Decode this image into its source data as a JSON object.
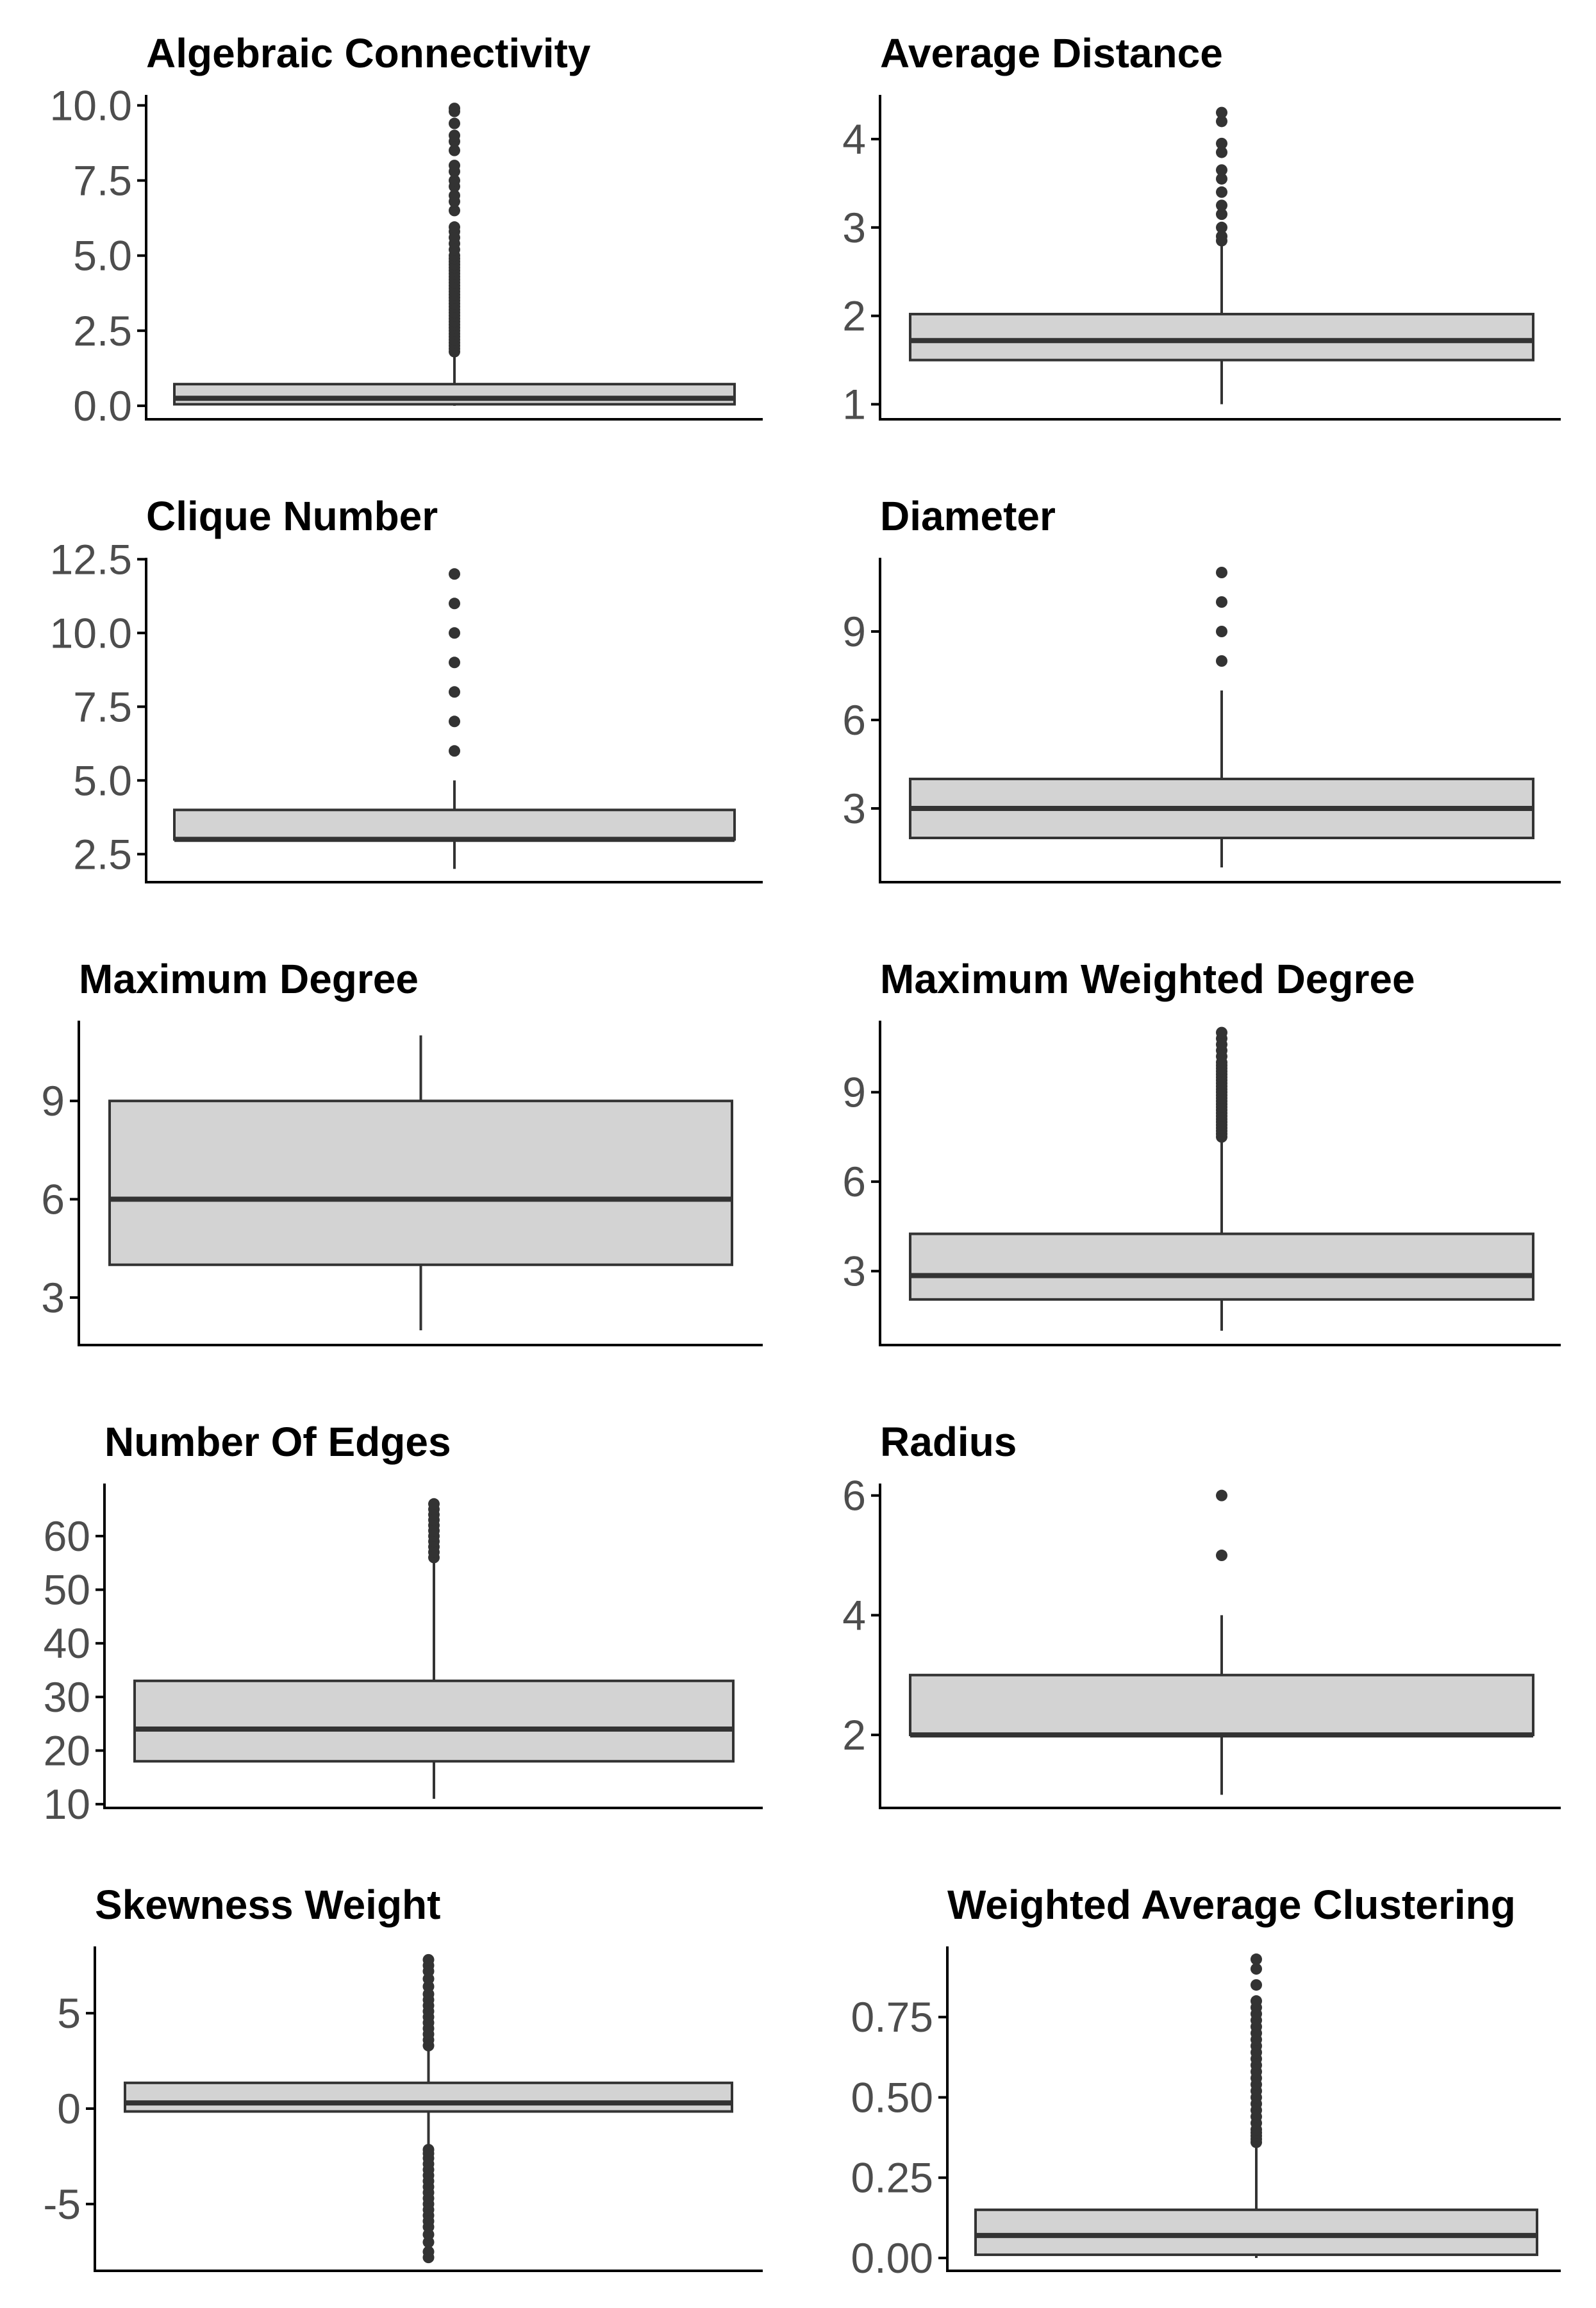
{
  "colors": {
    "box_fill": "#d3d3d3",
    "line": "#333333",
    "axis": "#000000",
    "tick_text": "#4d4d4d",
    "title_text": "#000000"
  },
  "chart_data": [
    {
      "type": "box",
      "title": "Algebraic Connectivity",
      "ylim": [
        -0.45,
        10.35
      ],
      "ticks": [
        {
          "v": 0,
          "label": "0.0"
        },
        {
          "v": 2.5,
          "label": "2.5"
        },
        {
          "v": 5,
          "label": "5.0"
        },
        {
          "v": 7.5,
          "label": "7.5"
        },
        {
          "v": 10,
          "label": "10.0"
        }
      ],
      "stats": {
        "whisker_low": 0.0,
        "q1": 0.05,
        "median": 0.25,
        "q3": 0.72,
        "whisker_high": 1.75
      },
      "outliers": [
        1.8,
        1.9,
        2.0,
        2.1,
        2.2,
        2.3,
        2.4,
        2.5,
        2.6,
        2.7,
        2.8,
        2.9,
        3.0,
        3.1,
        3.2,
        3.3,
        3.4,
        3.5,
        3.6,
        3.7,
        3.8,
        3.9,
        4.0,
        4.1,
        4.2,
        4.3,
        4.4,
        4.5,
        4.6,
        4.7,
        4.8,
        4.9,
        5.0,
        5.2,
        5.4,
        5.6,
        5.8,
        5.95,
        6.5,
        6.8,
        7.0,
        7.3,
        7.5,
        7.8,
        8.0,
        8.5,
        8.8,
        9.0,
        9.4,
        9.8,
        9.9
      ]
    },
    {
      "type": "box",
      "title": "Average Distance",
      "ylim": [
        0.83,
        4.5
      ],
      "ticks": [
        {
          "v": 1,
          "label": "1"
        },
        {
          "v": 2,
          "label": "2"
        },
        {
          "v": 3,
          "label": "3"
        },
        {
          "v": 4,
          "label": "4"
        }
      ],
      "stats": {
        "whisker_low": 1.0,
        "q1": 1.5,
        "median": 1.72,
        "q3": 2.02,
        "whisker_high": 2.8
      },
      "outliers": [
        2.85,
        2.9,
        3.0,
        3.15,
        3.25,
        3.4,
        3.55,
        3.65,
        3.85,
        3.95,
        4.2,
        4.3
      ]
    },
    {
      "type": "box",
      "title": "Clique Number",
      "ylim": [
        1.55,
        12.55
      ],
      "ticks": [
        {
          "v": 2.5,
          "label": "2.5"
        },
        {
          "v": 5,
          "label": "5.0"
        },
        {
          "v": 7.5,
          "label": "7.5"
        },
        {
          "v": 10,
          "label": "10.0"
        },
        {
          "v": 12.5,
          "label": "12.5"
        }
      ],
      "stats": {
        "whisker_low": 2,
        "q1": 3,
        "median": 3,
        "q3": 4,
        "whisker_high": 5
      },
      "outliers": [
        6,
        7,
        8,
        9,
        10,
        11,
        12
      ]
    },
    {
      "type": "box",
      "title": "Diameter",
      "ylim": [
        0.5,
        11.5
      ],
      "ticks": [
        {
          "v": 3,
          "label": "3"
        },
        {
          "v": 6,
          "label": "6"
        },
        {
          "v": 9,
          "label": "9"
        }
      ],
      "stats": {
        "whisker_low": 1,
        "q1": 2,
        "median": 3,
        "q3": 4,
        "whisker_high": 7
      },
      "outliers": [
        8,
        9,
        10,
        11
      ]
    },
    {
      "type": "box",
      "title": "Maximum Degree",
      "ylim": [
        1.55,
        11.45
      ],
      "ticks": [
        {
          "v": 3,
          "label": "3"
        },
        {
          "v": 6,
          "label": "6"
        },
        {
          "v": 9,
          "label": "9"
        }
      ],
      "stats": {
        "whisker_low": 2,
        "q1": 4,
        "median": 6,
        "q3": 9,
        "whisker_high": 11
      },
      "outliers": []
    },
    {
      "type": "box",
      "title": "Maximum Weighted Degree",
      "ylim": [
        0.52,
        11.4
      ],
      "ticks": [
        {
          "v": 3,
          "label": "3"
        },
        {
          "v": 6,
          "label": "6"
        },
        {
          "v": 9,
          "label": "9"
        }
      ],
      "stats": {
        "whisker_low": 1.0,
        "q1": 2.05,
        "median": 2.85,
        "q3": 4.25,
        "whisker_high": 7.4
      },
      "outliers": [
        7.5,
        7.6,
        7.7,
        7.8,
        7.9,
        8.0,
        8.1,
        8.2,
        8.3,
        8.4,
        8.5,
        8.6,
        8.7,
        8.8,
        8.9,
        9.0,
        9.1,
        9.2,
        9.3,
        9.4,
        9.5,
        9.6,
        9.7,
        9.8,
        9.9,
        10.0,
        10.2,
        10.4,
        10.6,
        10.8,
        11.0
      ]
    },
    {
      "type": "box",
      "title": "Number Of Edges",
      "ylim": [
        9.3,
        69.8
      ],
      "ticks": [
        {
          "v": 10,
          "label": "10"
        },
        {
          "v": 20,
          "label": "20"
        },
        {
          "v": 30,
          "label": "30"
        },
        {
          "v": 40,
          "label": "40"
        },
        {
          "v": 50,
          "label": "50"
        },
        {
          "v": 60,
          "label": "60"
        }
      ],
      "stats": {
        "whisker_low": 11,
        "q1": 18,
        "median": 24,
        "q3": 33,
        "whisker_high": 55
      },
      "outliers": [
        56,
        57,
        58,
        59,
        60,
        61,
        62,
        63,
        64,
        65,
        66
      ]
    },
    {
      "type": "box",
      "title": "Radius",
      "ylim": [
        0.78,
        6.2
      ],
      "ticks": [
        {
          "v": 2,
          "label": "2"
        },
        {
          "v": 4,
          "label": "4"
        },
        {
          "v": 6,
          "label": "6"
        }
      ],
      "stats": {
        "whisker_low": 1,
        "q1": 2,
        "median": 2,
        "q3": 3,
        "whisker_high": 4
      },
      "outliers": [
        5,
        6
      ]
    },
    {
      "type": "box",
      "title": "Skewness Weight",
      "ylim": [
        -8.5,
        8.5
      ],
      "ticks": [
        {
          "v": -5,
          "label": "-5"
        },
        {
          "v": 0,
          "label": "0"
        },
        {
          "v": 5,
          "label": "5"
        }
      ],
      "stats": {
        "whisker_low": -2.0,
        "q1": -0.15,
        "median": 0.3,
        "q3": 1.35,
        "whisker_high": 3.1
      },
      "outliers": [
        -7.8,
        -7.5,
        -7.0,
        -6.6,
        -6.2,
        -5.9,
        -5.6,
        -5.3,
        -5.0,
        -4.7,
        -4.4,
        -4.1,
        -3.8,
        -3.5,
        -3.2,
        -2.9,
        -2.6,
        -2.35,
        -2.15,
        3.3,
        3.6,
        3.9,
        4.2,
        4.5,
        4.8,
        5.1,
        5.4,
        5.7,
        6.0,
        6.4,
        6.8,
        7.2,
        7.5,
        7.8
      ]
    },
    {
      "type": "box",
      "title": "Weighted Average Clustering",
      "ylim": [
        -0.04,
        0.97
      ],
      "ticks": [
        {
          "v": 0,
          "label": "0.00"
        },
        {
          "v": 0.25,
          "label": "0.25"
        },
        {
          "v": 0.5,
          "label": "0.50"
        },
        {
          "v": 0.75,
          "label": "0.75"
        }
      ],
      "stats": {
        "whisker_low": 0.0,
        "q1": 0.01,
        "median": 0.07,
        "q3": 0.15,
        "whisker_high": 0.35
      },
      "outliers": [
        0.36,
        0.37,
        0.38,
        0.39,
        0.4,
        0.42,
        0.44,
        0.46,
        0.48,
        0.5,
        0.52,
        0.54,
        0.56,
        0.58,
        0.6,
        0.62,
        0.64,
        0.66,
        0.68,
        0.7,
        0.72,
        0.74,
        0.76,
        0.78,
        0.8,
        0.85,
        0.9,
        0.93
      ]
    }
  ]
}
